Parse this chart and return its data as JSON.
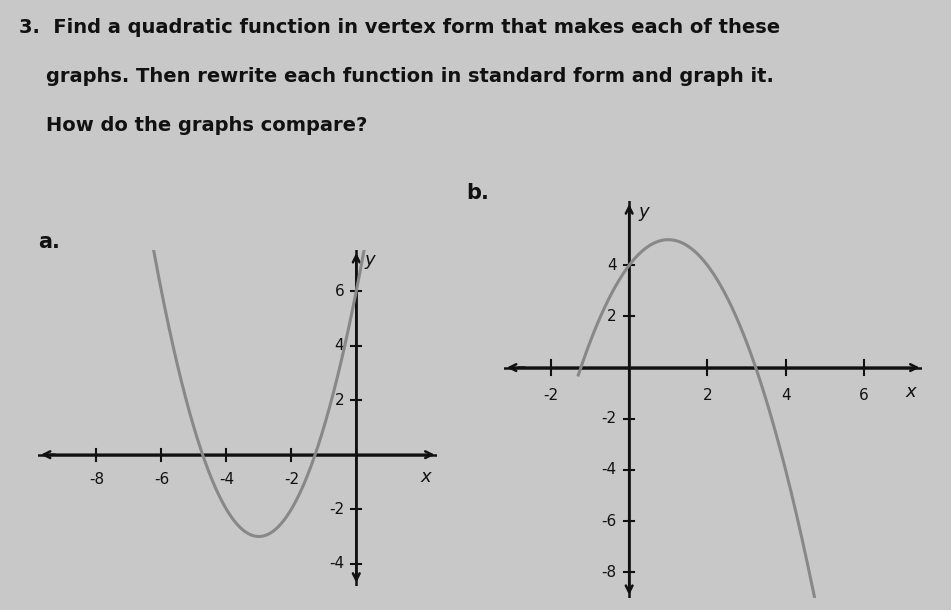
{
  "graph_a": {
    "vertex": [
      -3,
      -3
    ],
    "a": 1,
    "xlim": [
      -9.8,
      2.5
    ],
    "ylim": [
      -4.8,
      7.5
    ],
    "xticks": [
      -8,
      -6,
      -4,
      -2
    ],
    "yticks": [
      -4,
      -2,
      2,
      4,
      6
    ],
    "curve_color": "#888888",
    "axis_color": "#111111",
    "label": "a.",
    "curve_xmin": -7.5,
    "curve_xmax": 1.5
  },
  "graph_b": {
    "vertex": [
      1,
      5
    ],
    "a": -1,
    "xlim": [
      -3.2,
      7.5
    ],
    "ylim": [
      -9.0,
      6.5
    ],
    "xticks": [
      -2,
      2,
      4,
      6
    ],
    "yticks": [
      -8,
      -6,
      -4,
      -2,
      2,
      4
    ],
    "curve_color": "#888888",
    "axis_color": "#111111",
    "label": "b.",
    "curve_xmin": -1.3,
    "curve_xmax": 5.8
  },
  "background_color": "#c8c8c8",
  "text_color": "#111111",
  "title_line1": "3.  Find a quadratic function in vertex form that makes each of these",
  "title_line2": "    graphs. Then rewrite each function in standard form and graph it.",
  "title_line3": "    How do the graphs compare?",
  "title_fontsize": 14,
  "label_fontsize": 15,
  "tick_fontsize": 11,
  "axis_label_fontsize": 13
}
